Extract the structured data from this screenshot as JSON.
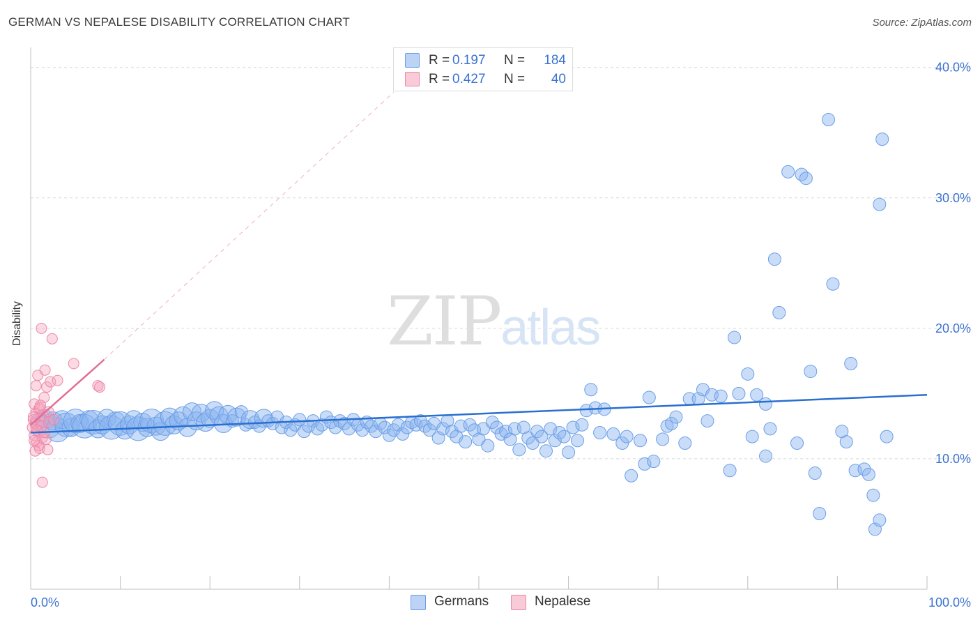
{
  "header": {
    "title": "GERMAN VS NEPALESE DISABILITY CORRELATION CHART",
    "source": "Source: ZipAtlas.com"
  },
  "watermark": {
    "zip": "ZIP",
    "atlas": "atlas"
  },
  "legend_top": [
    {
      "r_label": "R =",
      "r_value": "0.197",
      "n_label": "N =",
      "n_value": "184",
      "color": "#8ab4f0"
    },
    {
      "r_label": "R =",
      "r_value": "0.427",
      "n_label": "N =",
      "n_value": "40",
      "color": "#f5a3bc"
    }
  ],
  "legend_bottom": [
    {
      "label": "Germans",
      "color": "#8ab4f0"
    },
    {
      "label": "Nepalese",
      "color": "#f5a3bc"
    }
  ],
  "colors": {
    "germans_fill": "rgba(138,180,240,0.45)",
    "germans_stroke": "#6a9ee6",
    "germans_line": "#2a6fd0",
    "nepalese_fill": "rgba(245,163,188,0.40)",
    "nepalese_stroke": "#ee86a8",
    "nepalese_line": "#e36d96",
    "grid": "#d8d8d8",
    "tick_label": "#3a72d0"
  },
  "chart_data": {
    "type": "scatter",
    "title": "GERMAN VS NEPALESE DISABILITY CORRELATION CHART",
    "xlabel": "",
    "ylabel": "Disability",
    "xlim": [
      0,
      100
    ],
    "ylim": [
      0,
      41
    ],
    "x_ticks": [
      "0.0%",
      "100.0%"
    ],
    "y_ticks": [
      {
        "value": 10,
        "label": "10.0%"
      },
      {
        "value": 20,
        "label": "20.0%"
      },
      {
        "value": 30,
        "label": "30.0%"
      },
      {
        "value": 40,
        "label": "40.0%"
      }
    ],
    "grid": "horizontal-dashed",
    "legend_position": "top-center",
    "series": [
      {
        "name": "Germans",
        "trend": {
          "x": [
            0,
            100
          ],
          "y": [
            12.0,
            14.9
          ]
        },
        "points": [
          [
            1.0,
            12.8,
            2
          ],
          [
            1.5,
            13.1,
            2
          ],
          [
            2.0,
            12.5,
            3
          ],
          [
            2.5,
            12.9,
            2
          ],
          [
            3.0,
            12.2,
            3
          ],
          [
            3.5,
            13.0,
            2
          ],
          [
            4.0,
            12.6,
            3
          ],
          [
            4.5,
            12.4,
            2
          ],
          [
            5.0,
            12.9,
            3
          ],
          [
            5.5,
            12.7,
            2
          ],
          [
            6.0,
            12.5,
            3
          ],
          [
            6.5,
            13.0,
            2
          ],
          [
            7.0,
            12.8,
            3
          ],
          [
            7.5,
            12.3,
            2
          ],
          [
            8.0,
            12.6,
            2
          ],
          [
            8.5,
            13.1,
            2
          ],
          [
            9.0,
            12.4,
            3
          ],
          [
            9.5,
            12.9,
            2
          ],
          [
            10.0,
            12.7,
            3
          ],
          [
            10.5,
            12.2,
            2
          ],
          [
            11.0,
            12.6,
            2
          ],
          [
            11.5,
            13.0,
            2
          ],
          [
            12.0,
            12.3,
            3
          ],
          [
            12.5,
            12.8,
            2
          ],
          [
            13.0,
            12.4,
            2
          ],
          [
            13.5,
            12.9,
            3
          ],
          [
            14.0,
            12.5,
            2
          ],
          [
            14.5,
            12.1,
            2
          ],
          [
            15.0,
            12.7,
            3
          ],
          [
            15.5,
            13.2,
            2
          ],
          [
            16.0,
            12.6,
            2
          ],
          [
            16.5,
            12.9,
            2
          ],
          [
            17.0,
            13.3,
            2
          ],
          [
            17.5,
            12.4,
            2
          ],
          [
            18.0,
            13.6,
            2
          ],
          [
            18.5,
            12.9,
            2
          ],
          [
            19.0,
            13.5,
            2
          ],
          [
            19.5,
            12.8,
            2
          ],
          [
            20.0,
            13.1,
            2
          ],
          [
            20.5,
            13.7,
            2
          ],
          [
            21.0,
            13.3,
            2
          ],
          [
            21.5,
            12.7,
            2
          ],
          [
            22.0,
            13.4,
            2
          ],
          [
            22.5,
            12.9,
            1
          ],
          [
            23.0,
            13.2,
            2
          ],
          [
            23.5,
            13.6,
            1
          ],
          [
            24.0,
            12.6,
            1
          ],
          [
            24.5,
            13.0,
            2
          ],
          [
            25.0,
            12.8,
            1
          ],
          [
            25.5,
            12.5,
            1
          ],
          [
            26.0,
            13.1,
            2
          ],
          [
            26.5,
            12.9,
            1
          ],
          [
            27.0,
            12.7,
            1
          ],
          [
            27.5,
            13.2,
            1
          ],
          [
            28.0,
            12.4,
            1
          ],
          [
            28.5,
            12.8,
            1
          ],
          [
            29.0,
            12.2,
            1
          ],
          [
            29.5,
            12.6,
            1
          ],
          [
            30.0,
            13.0,
            1
          ],
          [
            30.5,
            12.1,
            1
          ],
          [
            31.0,
            12.5,
            1
          ],
          [
            31.5,
            12.9,
            1
          ],
          [
            32.0,
            12.3,
            1
          ],
          [
            32.5,
            12.6,
            1
          ],
          [
            33.0,
            13.2,
            1
          ],
          [
            33.5,
            12.8,
            1
          ],
          [
            34.0,
            12.4,
            1
          ],
          [
            34.5,
            12.9,
            1
          ],
          [
            35.0,
            12.7,
            1
          ],
          [
            35.5,
            12.3,
            1
          ],
          [
            36.0,
            13.0,
            1
          ],
          [
            36.5,
            12.6,
            1
          ],
          [
            37.0,
            12.2,
            1
          ],
          [
            37.5,
            12.8,
            1
          ],
          [
            38.0,
            12.5,
            1
          ],
          [
            38.5,
            12.1,
            1
          ],
          [
            39.0,
            12.7,
            1
          ],
          [
            39.5,
            12.4,
            1
          ],
          [
            40.0,
            11.8,
            1
          ],
          [
            40.5,
            12.2,
            1
          ],
          [
            41.0,
            12.6,
            1
          ],
          [
            41.5,
            11.9,
            1
          ],
          [
            42.0,
            12.4,
            1
          ],
          [
            42.5,
            12.8,
            1
          ],
          [
            43.0,
            12.6,
            1
          ],
          [
            43.5,
            12.9,
            1
          ],
          [
            44.0,
            12.5,
            1
          ],
          [
            44.5,
            12.2,
            1
          ],
          [
            45.0,
            12.7,
            1
          ],
          [
            45.5,
            11.6,
            1
          ],
          [
            46.0,
            12.3,
            1
          ],
          [
            46.5,
            12.9,
            1
          ],
          [
            47.0,
            12.1,
            1
          ],
          [
            47.5,
            11.7,
            1
          ],
          [
            48.0,
            12.5,
            1
          ],
          [
            48.5,
            11.3,
            1
          ],
          [
            49.0,
            12.6,
            1
          ],
          [
            49.5,
            12.2,
            1
          ],
          [
            50.0,
            11.5,
            1
          ],
          [
            50.5,
            12.3,
            1
          ],
          [
            51.0,
            11.0,
            1
          ],
          [
            51.5,
            12.8,
            1
          ],
          [
            52.0,
            12.4,
            1
          ],
          [
            52.5,
            11.9,
            1
          ],
          [
            53.0,
            12.1,
            1
          ],
          [
            53.5,
            11.5,
            1
          ],
          [
            54.0,
            12.3,
            1
          ],
          [
            54.5,
            10.7,
            1
          ],
          [
            55.0,
            12.4,
            1
          ],
          [
            55.5,
            11.6,
            1
          ],
          [
            56.0,
            11.2,
            1
          ],
          [
            56.5,
            12.1,
            1
          ],
          [
            57.0,
            11.7,
            1
          ],
          [
            57.5,
            10.6,
            1
          ],
          [
            58.0,
            12.3,
            1
          ],
          [
            58.5,
            11.4,
            1
          ],
          [
            59.0,
            12.0,
            1
          ],
          [
            59.5,
            11.7,
            1
          ],
          [
            60.0,
            10.5,
            1
          ],
          [
            60.5,
            12.4,
            1
          ],
          [
            61.0,
            11.4,
            1
          ],
          [
            61.5,
            12.6,
            1
          ],
          [
            62.0,
            13.7,
            1
          ],
          [
            63.0,
            13.9,
            1
          ],
          [
            64.0,
            13.8,
            1
          ],
          [
            62.5,
            15.3,
            1
          ],
          [
            63.5,
            12.0,
            1
          ],
          [
            65.0,
            11.9,
            1
          ],
          [
            66.0,
            11.2,
            1
          ],
          [
            66.5,
            11.7,
            1
          ],
          [
            67.0,
            8.7,
            1
          ],
          [
            68.0,
            11.4,
            1
          ],
          [
            68.5,
            9.6,
            1
          ],
          [
            69.0,
            14.7,
            1
          ],
          [
            69.5,
            9.8,
            1
          ],
          [
            70.5,
            11.5,
            1
          ],
          [
            71.0,
            12.5,
            1
          ],
          [
            71.5,
            12.7,
            1
          ],
          [
            72.0,
            13.2,
            1
          ],
          [
            73.0,
            11.2,
            1
          ],
          [
            73.5,
            14.6,
            1
          ],
          [
            74.5,
            14.6,
            1
          ],
          [
            75.0,
            15.3,
            1
          ],
          [
            75.5,
            12.9,
            1
          ],
          [
            76.0,
            14.9,
            1
          ],
          [
            77.0,
            14.8,
            1
          ],
          [
            78.0,
            9.1,
            1
          ],
          [
            78.5,
            19.3,
            1
          ],
          [
            79.0,
            15.0,
            1
          ],
          [
            80.0,
            16.5,
            1
          ],
          [
            80.5,
            11.7,
            1
          ],
          [
            81.0,
            14.9,
            1
          ],
          [
            82.0,
            10.2,
            1
          ],
          [
            82.5,
            12.3,
            1
          ],
          [
            82.0,
            14.2,
            1
          ],
          [
            83.0,
            25.3,
            1
          ],
          [
            83.5,
            21.2,
            1
          ],
          [
            84.5,
            32.0,
            1
          ],
          [
            85.5,
            11.2,
            1
          ],
          [
            86.0,
            31.8,
            1
          ],
          [
            86.5,
            31.5,
            1
          ],
          [
            87.0,
            16.7,
            1
          ],
          [
            87.5,
            8.9,
            1
          ],
          [
            88.0,
            5.8,
            1
          ],
          [
            89.0,
            36.0,
            1
          ],
          [
            89.5,
            23.4,
            1
          ],
          [
            90.5,
            12.1,
            1
          ],
          [
            91.0,
            11.3,
            1
          ],
          [
            91.5,
            17.3,
            1
          ],
          [
            92.0,
            9.1,
            1
          ],
          [
            93.0,
            9.2,
            1
          ],
          [
            93.5,
            8.8,
            1
          ],
          [
            94.0,
            7.2,
            1
          ],
          [
            94.2,
            4.6,
            1
          ],
          [
            94.7,
            5.3,
            1
          ],
          [
            94.7,
            29.5,
            1
          ],
          [
            95.0,
            34.5,
            1
          ],
          [
            95.5,
            11.7,
            1
          ]
        ]
      },
      {
        "name": "Nepalese",
        "trend": {
          "x": [
            0,
            8.2
          ],
          "y": [
            12.6,
            17.6
          ]
        },
        "trend_extension": {
          "x": [
            8.2,
            40.5
          ],
          "y": [
            17.6,
            38.1
          ]
        },
        "points": [
          [
            0.2,
            12.4,
            1
          ],
          [
            0.3,
            13.0,
            1
          ],
          [
            0.4,
            11.8,
            1
          ],
          [
            0.5,
            12.7,
            1
          ],
          [
            0.6,
            13.5,
            1
          ],
          [
            0.7,
            11.3,
            1
          ],
          [
            0.8,
            12.1,
            1
          ],
          [
            0.9,
            13.8,
            1
          ],
          [
            1.0,
            10.8,
            1
          ],
          [
            1.1,
            12.9,
            1
          ],
          [
            0.4,
            14.2,
            1
          ],
          [
            0.6,
            15.6,
            1
          ],
          [
            0.8,
            16.4,
            1
          ],
          [
            1.2,
            12.5,
            1
          ],
          [
            1.3,
            11.6,
            1
          ],
          [
            1.4,
            13.3,
            1
          ],
          [
            1.5,
            14.7,
            1
          ],
          [
            1.6,
            16.8,
            1
          ],
          [
            1.2,
            20.0,
            1
          ],
          [
            1.8,
            15.5,
            1
          ],
          [
            2.0,
            12.8,
            1
          ],
          [
            2.2,
            15.9,
            1
          ],
          [
            2.4,
            19.2,
            1
          ],
          [
            1.3,
            8.2,
            1
          ],
          [
            0.9,
            11.0,
            1
          ],
          [
            1.7,
            11.5,
            1
          ],
          [
            0.5,
            10.6,
            1
          ],
          [
            1.1,
            14.1,
            1
          ],
          [
            0.3,
            13.2,
            1
          ],
          [
            2.0,
            13.6,
            1
          ],
          [
            3.0,
            16.0,
            1
          ],
          [
            4.8,
            17.3,
            1
          ],
          [
            7.5,
            15.6,
            1
          ],
          [
            7.7,
            15.5,
            1
          ],
          [
            0.7,
            12.2,
            1
          ],
          [
            1.9,
            10.7,
            1
          ],
          [
            0.4,
            11.4,
            1
          ],
          [
            1.0,
            13.9,
            1
          ],
          [
            2.6,
            13.0,
            1
          ],
          [
            1.5,
            12.0,
            1
          ]
        ]
      }
    ]
  }
}
